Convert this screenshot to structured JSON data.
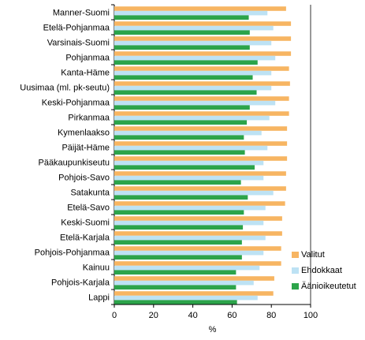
{
  "chart_data": {
    "type": "bar",
    "orientation": "horizontal",
    "title": "",
    "xlabel": "%",
    "ylabel": "",
    "xlim": [
      0,
      100
    ],
    "x_ticks": [
      "0",
      "20",
      "40",
      "60",
      "80",
      "100"
    ],
    "grid": false,
    "legend_position": "right",
    "categories": [
      "Manner-Suomi",
      "Etelä-Pohjanmaa",
      "Varsinais-Suomi",
      "Pohjanmaa",
      "Kanta-Häme",
      "Uusimaa (ml. pk-seutu)",
      "Keski-Pohjanmaa",
      "Pirkanmaa",
      "Kymenlaakso",
      "Päijät-Häme",
      "Pääkaupunkiseutu",
      "Pohjois-Savo",
      "Satakunta",
      "Etelä-Savo",
      "Keski-Suomi",
      "Etelä-Karjala",
      "Pohjois-Pohjanmaa",
      "Kainuu",
      "Pohjois-Karjala",
      "Lappi"
    ],
    "series": [
      {
        "name": "Valitut",
        "color": "#f7b562",
        "values": [
          87.5,
          90,
          90,
          90,
          89,
          89.5,
          89,
          89,
          88,
          88,
          88,
          87.5,
          87.5,
          87,
          85.5,
          85.5,
          85,
          85,
          81.5,
          81
        ]
      },
      {
        "name": "Ehdokkaat",
        "color": "#bde2f4",
        "values": [
          78,
          81,
          80,
          82,
          80,
          80,
          82,
          79,
          75,
          78,
          76,
          76,
          81,
          77,
          76,
          77,
          76,
          74,
          71,
          73
        ]
      },
      {
        "name": "Äänioikeutetut",
        "color": "#2ca44a",
        "values": [
          68.5,
          69,
          69,
          73,
          70.5,
          72.5,
          69,
          67.5,
          66,
          66.5,
          71.5,
          64.5,
          68,
          66,
          65.5,
          65,
          65,
          62,
          62,
          62.5
        ]
      }
    ]
  }
}
